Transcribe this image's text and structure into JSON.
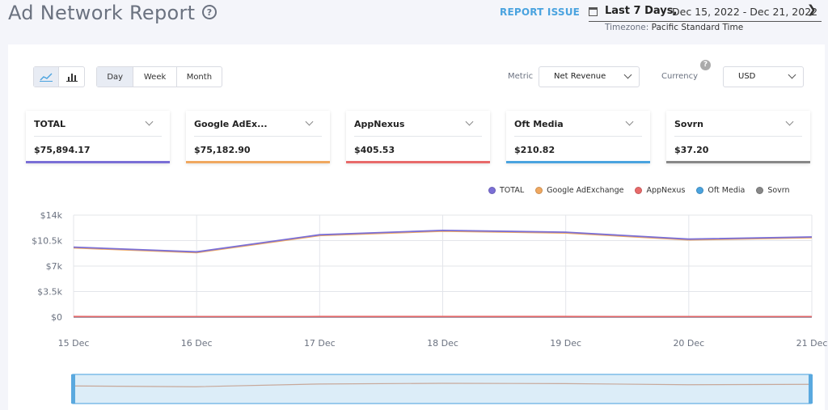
{
  "header": {
    "title": "Ad Network Report",
    "help_icon": "question-circle-icon",
    "report_issue": "REPORT ISSUE",
    "range_label": "Last 7 Days,",
    "range_dates": "Dec 15, 2022 - Dec 21, 2022",
    "timezone_label": "Timezone:",
    "timezone_value": "Pacific Standard Time"
  },
  "toolbar": {
    "chart_types": [
      {
        "name": "line-chart-icon",
        "active": true
      },
      {
        "name": "bar-chart-icon",
        "active": false
      }
    ],
    "periods": [
      {
        "label": "Day",
        "active": true
      },
      {
        "label": "Week",
        "active": false
      },
      {
        "label": "Month",
        "active": false
      }
    ],
    "metric_label": "Metric",
    "metric_value": "Net Revenue",
    "currency_label": "Currency",
    "currency_value": "USD"
  },
  "cards": [
    {
      "name": "TOTAL",
      "value": "$75,894.17",
      "color": "#7b6fd6"
    },
    {
      "name": "Google AdEx...",
      "value": "$75,182.90",
      "color": "#f0a860"
    },
    {
      "name": "AppNexus",
      "value": "$405.53",
      "color": "#e86a6a"
    },
    {
      "name": "Oft Media",
      "value": "$210.82",
      "color": "#4aa3df"
    },
    {
      "name": "Sovrn",
      "value": "$37.20",
      "color": "#888888"
    }
  ],
  "chart_data": {
    "type": "line",
    "categories": [
      "15 Dec",
      "16 Dec",
      "17 Dec",
      "18 Dec",
      "19 Dec",
      "20 Dec",
      "21 Dec"
    ],
    "yticks": [
      "$0",
      "$3.5k",
      "$7k",
      "$10.5k",
      "$14k"
    ],
    "ylim": [
      0,
      14000
    ],
    "grid": true,
    "legend_position": "top-right",
    "series": [
      {
        "name": "TOTAL",
        "color": "#7b6fd6",
        "values": [
          9600,
          8950,
          11300,
          11900,
          11650,
          10700,
          11000
        ]
      },
      {
        "name": "Google AdExchange",
        "color": "#f0a860",
        "values": [
          9500,
          8850,
          11200,
          11800,
          11550,
          10600,
          10900
        ]
      },
      {
        "name": "AppNexus",
        "color": "#e86a6a",
        "values": [
          60,
          55,
          60,
          60,
          60,
          55,
          55
        ]
      },
      {
        "name": "Oft Media",
        "color": "#4aa3df",
        "values": [
          30,
          30,
          30,
          30,
          30,
          30,
          30
        ]
      },
      {
        "name": "Sovrn",
        "color": "#888888",
        "values": [
          5,
          5,
          5,
          5,
          5,
          5,
          5
        ]
      }
    ]
  }
}
